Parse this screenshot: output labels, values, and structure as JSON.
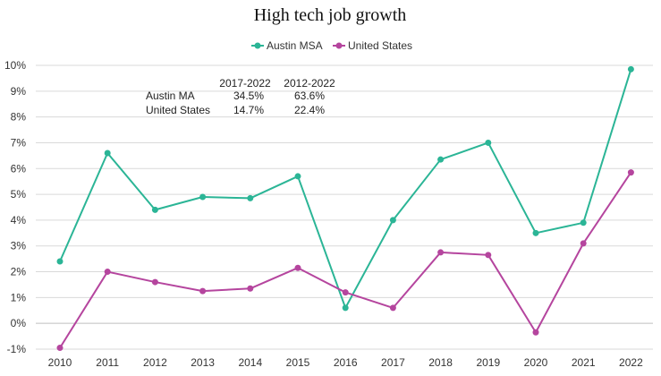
{
  "chart_data": {
    "type": "line",
    "title": "High tech job growth",
    "xlabel": "",
    "ylabel": "",
    "x": [
      "2010",
      "2011",
      "2012",
      "2013",
      "2014",
      "2015",
      "2016",
      "2017",
      "2018",
      "2019",
      "2020",
      "2021",
      "2022"
    ],
    "ylim": [
      -1,
      10
    ],
    "y_ticks": [
      -1,
      0,
      1,
      2,
      3,
      4,
      5,
      6,
      7,
      8,
      9,
      10
    ],
    "y_tick_suffix": "%",
    "grid": true,
    "legend_position": "top-center",
    "series": [
      {
        "name": "Austin MSA",
        "color": "#2bb596",
        "values": [
          2.4,
          6.6,
          4.4,
          4.9,
          4.85,
          5.7,
          0.6,
          4.0,
          6.35,
          7.0,
          3.5,
          3.9,
          9.85
        ]
      },
      {
        "name": "United States",
        "color": "#b5459e",
        "values": [
          -0.95,
          2.0,
          1.6,
          1.25,
          1.35,
          2.15,
          1.2,
          0.6,
          2.75,
          2.65,
          -0.35,
          3.1,
          5.85
        ]
      }
    ],
    "annotation_table": {
      "columns": [
        "2017-2022",
        "2012-2022"
      ],
      "rows": [
        {
          "label": "Austin MA",
          "values": [
            "34.5%",
            "63.6%"
          ]
        },
        {
          "label": "United States",
          "values": [
            "14.7%",
            "22.4%"
          ]
        }
      ]
    }
  }
}
